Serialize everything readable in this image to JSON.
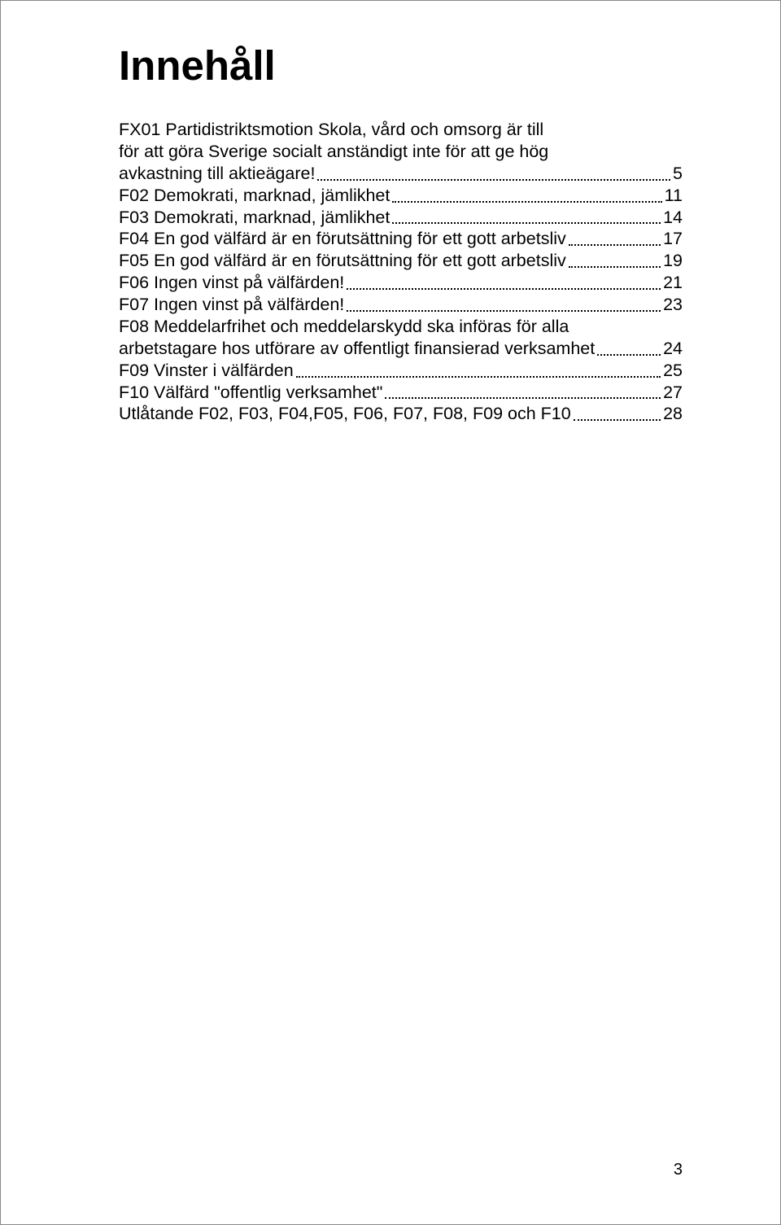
{
  "title": "Innehåll",
  "page_number": "3",
  "entries": [
    {
      "lines": [
        "FX01 Partidistriktsmotion Skola, vård och omsorg är till",
        "för att göra Sverige socialt anständigt inte för att ge hög",
        "avkastning till aktieägare!"
      ],
      "page": "5"
    },
    {
      "lines": [
        "F02 Demokrati, marknad, jämlikhet"
      ],
      "page": "11"
    },
    {
      "lines": [
        "F03 Demokrati, marknad, jämlikhet"
      ],
      "page": "14"
    },
    {
      "lines": [
        "F04 En god välfärd är en förutsättning för ett gott arbetsliv"
      ],
      "page": "17"
    },
    {
      "lines": [
        "F05 En god välfärd är en förutsättning för ett gott arbetsliv"
      ],
      "page": "19"
    },
    {
      "lines": [
        "F06 Ingen vinst på välfärden!"
      ],
      "page": "21"
    },
    {
      "lines": [
        "F07 Ingen vinst på välfärden!"
      ],
      "page": "23"
    },
    {
      "lines": [
        "F08 Meddelarfrihet och meddelarskydd ska införas för alla",
        "arbetstagare hos utförare av offentligt finansierad verksamhet"
      ],
      "page": "24"
    },
    {
      "lines": [
        "F09 Vinster i välfärden"
      ],
      "page": "25"
    },
    {
      "lines": [
        "F10 Välfärd \"offentlig verksamhet\""
      ],
      "page": "27"
    },
    {
      "lines": [
        "Utlåtande F02, F03, F04,F05, F06, F07, F08, F09 och F10"
      ],
      "page": "28"
    }
  ]
}
